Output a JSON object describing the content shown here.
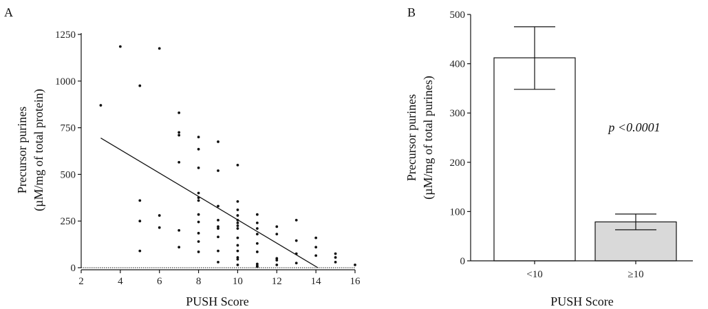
{
  "chart_data": [
    {
      "panel_label": "A",
      "type": "scatter",
      "xlabel": "PUSH Score",
      "ylabel_line1": "Precursor purines",
      "ylabel_line2": "(µM/mg of total protein)",
      "xlim": [
        2,
        16
      ],
      "ylim": [
        0,
        1250
      ],
      "xticks": [
        "2",
        "4",
        "6",
        "8",
        "10",
        "12",
        "14",
        "16"
      ],
      "yticks": [
        "0",
        "250",
        "500",
        "750",
        "1000",
        "1250"
      ],
      "points": [
        [
          3,
          870
        ],
        [
          4,
          1185
        ],
        [
          5,
          975
        ],
        [
          5,
          360
        ],
        [
          5,
          250
        ],
        [
          5,
          90
        ],
        [
          6,
          1175
        ],
        [
          6,
          280
        ],
        [
          6,
          215
        ],
        [
          7,
          830
        ],
        [
          7,
          725
        ],
        [
          7,
          710
        ],
        [
          7,
          565
        ],
        [
          7,
          200
        ],
        [
          7,
          110
        ],
        [
          8,
          700
        ],
        [
          8,
          635
        ],
        [
          8,
          535
        ],
        [
          8,
          400
        ],
        [
          8,
          375
        ],
        [
          8,
          360
        ],
        [
          8,
          285
        ],
        [
          8,
          245
        ],
        [
          8,
          185
        ],
        [
          8,
          140
        ],
        [
          8,
          85
        ],
        [
          9,
          675
        ],
        [
          9,
          520
        ],
        [
          9,
          330
        ],
        [
          9,
          255
        ],
        [
          9,
          220
        ],
        [
          9,
          210
        ],
        [
          9,
          165
        ],
        [
          9,
          90
        ],
        [
          9,
          30
        ],
        [
          10,
          550
        ],
        [
          10,
          355
        ],
        [
          10,
          310
        ],
        [
          10,
          280
        ],
        [
          10,
          255
        ],
        [
          10,
          240
        ],
        [
          10,
          225
        ],
        [
          10,
          210
        ],
        [
          10,
          160
        ],
        [
          10,
          120
        ],
        [
          10,
          90
        ],
        [
          10,
          55
        ],
        [
          10,
          45
        ],
        [
          10,
          15
        ],
        [
          11,
          285
        ],
        [
          11,
          240
        ],
        [
          11,
          210
        ],
        [
          11,
          180
        ],
        [
          11,
          130
        ],
        [
          11,
          85
        ],
        [
          11,
          20
        ],
        [
          11,
          10
        ],
        [
          11,
          5
        ],
        [
          12,
          220
        ],
        [
          12,
          180
        ],
        [
          12,
          50
        ],
        [
          12,
          40
        ],
        [
          12,
          15
        ],
        [
          13,
          255
        ],
        [
          13,
          145
        ],
        [
          13,
          75
        ],
        [
          13,
          25
        ],
        [
          14,
          160
        ],
        [
          14,
          110
        ],
        [
          14,
          65
        ],
        [
          15,
          75
        ],
        [
          15,
          55
        ],
        [
          15,
          30
        ],
        [
          16,
          15
        ]
      ],
      "regression_line": {
        "x": [
          3,
          14.1
        ],
        "y": [
          695,
          0
        ]
      }
    },
    {
      "panel_label": "B",
      "type": "bar",
      "xlabel": "PUSH Score",
      "ylabel_line1": "Precursor purines",
      "ylabel_line2": "(µM/mg of total purines)",
      "ylim": [
        0,
        500
      ],
      "yticks": [
        "0",
        "100",
        "200",
        "300",
        "400",
        "500"
      ],
      "categories": [
        "<10",
        "≥10"
      ],
      "values": [
        412,
        79
      ],
      "error_low": [
        348,
        63
      ],
      "error_high": [
        475,
        95
      ],
      "bar_colors": [
        "#ffffff",
        "#d9d9d9"
      ],
      "annotation": "p <0.0001"
    }
  ]
}
